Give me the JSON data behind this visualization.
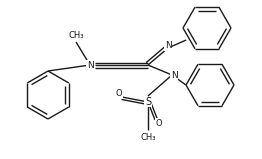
{
  "bg_color": "#ffffff",
  "line_color": "#1a1a1a",
  "line_width": 1.0,
  "font_size": 6.5,
  "figsize": [
    2.62,
    1.59
  ],
  "dpi": 100,
  "xlim": [
    0,
    262
  ],
  "ylim": [
    0,
    159
  ]
}
